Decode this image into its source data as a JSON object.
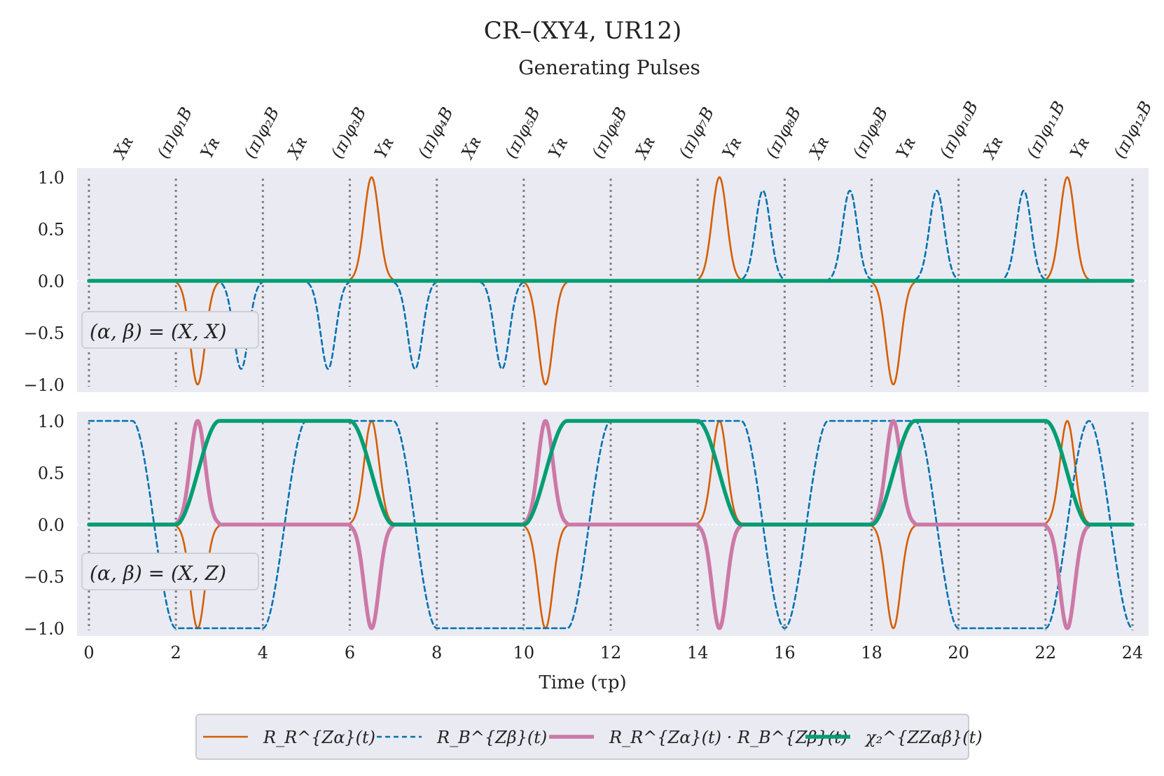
{
  "chart_data": {
    "type": "line",
    "title": "CR–(XY4, UR12)",
    "subtitle": "Generating Pulses",
    "xlabel": "Time (τp)",
    "xlim": [
      0,
      24
    ],
    "ylim": [
      -1.0,
      1.0
    ],
    "xticks": [
      0,
      2,
      4,
      6,
      8,
      10,
      12,
      14,
      16,
      18,
      20,
      22,
      24
    ],
    "yticks": [
      1.0,
      0.5,
      0.0,
      -0.5,
      -1.0
    ],
    "ytick_labels": [
      "1.0",
      "0.5",
      "0.0",
      "−0.5",
      "−1.0"
    ],
    "pulse_boundaries": [
      0,
      2,
      4,
      6,
      8,
      10,
      12,
      14,
      16,
      18,
      20,
      22,
      24
    ],
    "pulse_labels": [
      {
        "x": 0.5,
        "text": "Xʀ"
      },
      {
        "x": 1.5,
        "text": "(π)φ₁B"
      },
      {
        "x": 2.5,
        "text": "Yʀ"
      },
      {
        "x": 3.5,
        "text": "(π)φ₂B"
      },
      {
        "x": 4.5,
        "text": "Xʀ"
      },
      {
        "x": 5.5,
        "text": "(π)φ₃B"
      },
      {
        "x": 6.5,
        "text": "Yʀ"
      },
      {
        "x": 7.5,
        "text": "(π)φ₄B"
      },
      {
        "x": 8.5,
        "text": "Xʀ"
      },
      {
        "x": 9.5,
        "text": "(π)φ₅B"
      },
      {
        "x": 10.5,
        "text": "Yʀ"
      },
      {
        "x": 11.5,
        "text": "(π)φ₆B"
      },
      {
        "x": 12.5,
        "text": "Xʀ"
      },
      {
        "x": 13.5,
        "text": "(π)φ₇B"
      },
      {
        "x": 14.5,
        "text": "Yʀ"
      },
      {
        "x": 15.5,
        "text": "(π)φ₈B"
      },
      {
        "x": 16.5,
        "text": "Xʀ"
      },
      {
        "x": 17.5,
        "text": "(π)φ₉B"
      },
      {
        "x": 18.5,
        "text": "Yʀ"
      },
      {
        "x": 19.5,
        "text": "(π)φ₁₀B"
      },
      {
        "x": 20.5,
        "text": "Xʀ"
      },
      {
        "x": 21.5,
        "text": "(π)φ₁₁B"
      },
      {
        "x": 22.5,
        "text": "Yʀ"
      },
      {
        "x": 23.5,
        "text": "(π)φ₁₂B"
      }
    ],
    "colors": {
      "RR": "#d55e00",
      "RB": "#0072b2",
      "product": "#cc79a7",
      "chi": "#009e73",
      "boundary": "#808080",
      "panel": "#eaeaf2"
    },
    "panels": [
      {
        "label": "(α, β) = (X, X)",
        "series": [
          {
            "name": "R_R^{Zα}(t)",
            "key": "RR",
            "kind": "gaussians",
            "pulses": [
              [
                2.5,
                -1.0
              ],
              [
                6.5,
                1.0
              ],
              [
                10.5,
                -1.0
              ],
              [
                14.5,
                1.0
              ],
              [
                18.5,
                -1.0
              ],
              [
                22.5,
                1.0
              ]
            ]
          },
          {
            "name": "R_B^{Zβ}(t)",
            "key": "RB",
            "kind": "gaussians",
            "pulses": [
              [
                3.5,
                -0.85
              ],
              [
                5.5,
                -0.85
              ],
              [
                7.5,
                -0.85
              ],
              [
                9.5,
                -0.85
              ],
              [
                15.5,
                0.87
              ],
              [
                17.5,
                0.87
              ],
              [
                19.5,
                0.87
              ],
              [
                21.5,
                0.87
              ]
            ]
          },
          {
            "name": "χ₂^{ZZαβ}(t)",
            "key": "chi",
            "kind": "flat",
            "value": 0.0
          }
        ]
      },
      {
        "label": "(α, β) = (X, Z)",
        "series": [
          {
            "name": "R_R^{Zα}(t)",
            "key": "RR",
            "kind": "gaussians",
            "pulses": [
              [
                2.5,
                -1.0
              ],
              [
                6.5,
                1.0
              ],
              [
                10.5,
                -1.0
              ],
              [
                14.5,
                1.0
              ],
              [
                18.5,
                -1.0
              ],
              [
                22.5,
                1.0
              ]
            ]
          },
          {
            "name": "R_B^{Zβ}(t)",
            "key": "RB",
            "kind": "steps",
            "start": 1.0,
            "transitions": [
              1.5,
              4.5,
              7.5,
              11.5,
              15.5,
              16.5,
              19.5,
              22.5,
              23.5
            ]
          },
          {
            "name": "R_R^{Zα}(t) · R_B^{Zβ}(t)",
            "key": "product",
            "kind": "gaussians",
            "pulses": [
              [
                2.5,
                1.0
              ],
              [
                6.5,
                -1.0
              ],
              [
                10.5,
                1.0
              ],
              [
                14.5,
                -1.0
              ],
              [
                18.5,
                1.0
              ],
              [
                22.5,
                -1.0
              ]
            ]
          },
          {
            "name": "χ₂^{ZZαβ}(t)",
            "key": "chi",
            "kind": "plateaus",
            "intervals": [
              [
                2.5,
                6.5
              ],
              [
                10.5,
                14.5
              ],
              [
                18.5,
                22.5
              ]
            ],
            "value": 1.0
          }
        ]
      }
    ],
    "legend": {
      "position": "bottom-center",
      "entries": [
        {
          "key": "RR",
          "style": "solid",
          "label": "R_R^{Zα}(t)"
        },
        {
          "key": "RB",
          "style": "dashed",
          "label": "R_B^{Zβ}(t)"
        },
        {
          "key": "product",
          "style": "thick",
          "label": "R_R^{Zα}(t) · R_B^{Zβ}(t)"
        },
        {
          "key": "chi",
          "style": "thick",
          "label": "χ₂^{ZZαβ}(t)"
        }
      ]
    }
  }
}
